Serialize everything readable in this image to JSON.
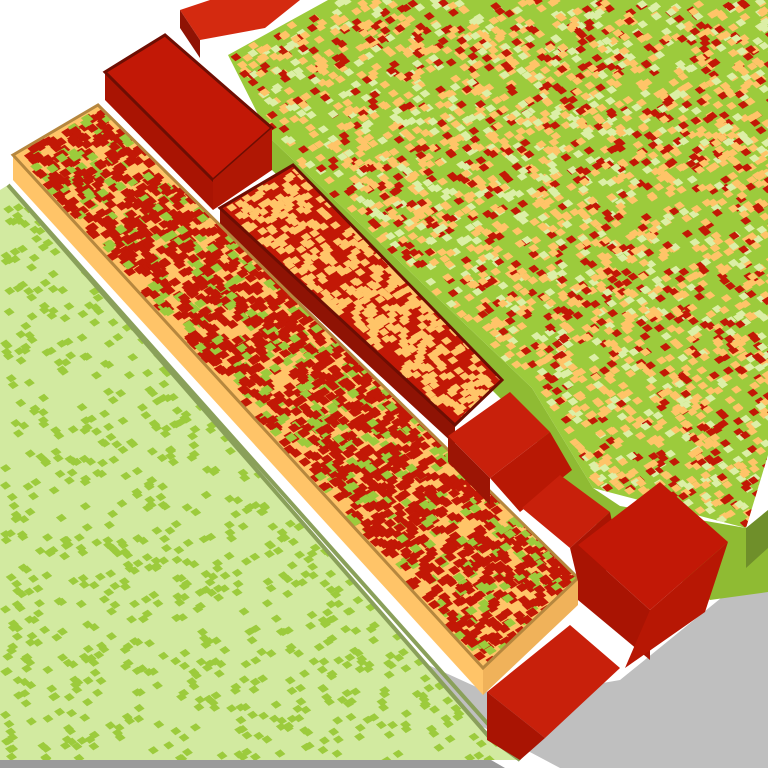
{
  "colors": {
    "background": "#ffffff",
    "base_top": "#bfbfbf",
    "base_side": "#9a9a9a",
    "red": "#c21806",
    "red_dark": "#8f1304",
    "red_outline": "#6e0e03",
    "orange": "#ffc468",
    "orange_dark": "#d89a48",
    "green": "#9ccb3c",
    "green_dark": "#6f8f2a",
    "green_outline": "#55731e",
    "light_green": "#d2eaa0",
    "light_green_dark": "#a9c777",
    "pale_green": "#dcefa6"
  },
  "blocks": [
    {
      "name": "light-green-strip",
      "fill": "light_green",
      "pattern": [
        "green"
      ]
    },
    {
      "name": "mixed-strip",
      "fill": "orange",
      "pattern": [
        "red",
        "green"
      ]
    },
    {
      "name": "dark-red-strip",
      "fill": "red",
      "pattern": [
        "orange"
      ]
    },
    {
      "name": "green-field",
      "fill": "green",
      "pattern": [
        "orange",
        "red",
        "pale_green"
      ]
    },
    {
      "name": "red-cube-tall",
      "fill": "red"
    },
    {
      "name": "red-cube-top",
      "fill": "red"
    },
    {
      "name": "red-cube-middle",
      "fill": "red"
    },
    {
      "name": "red-cube-lower",
      "fill": "red"
    },
    {
      "name": "red-cube-right",
      "fill": "red"
    },
    {
      "name": "red-cube-bottom",
      "fill": "red"
    }
  ]
}
